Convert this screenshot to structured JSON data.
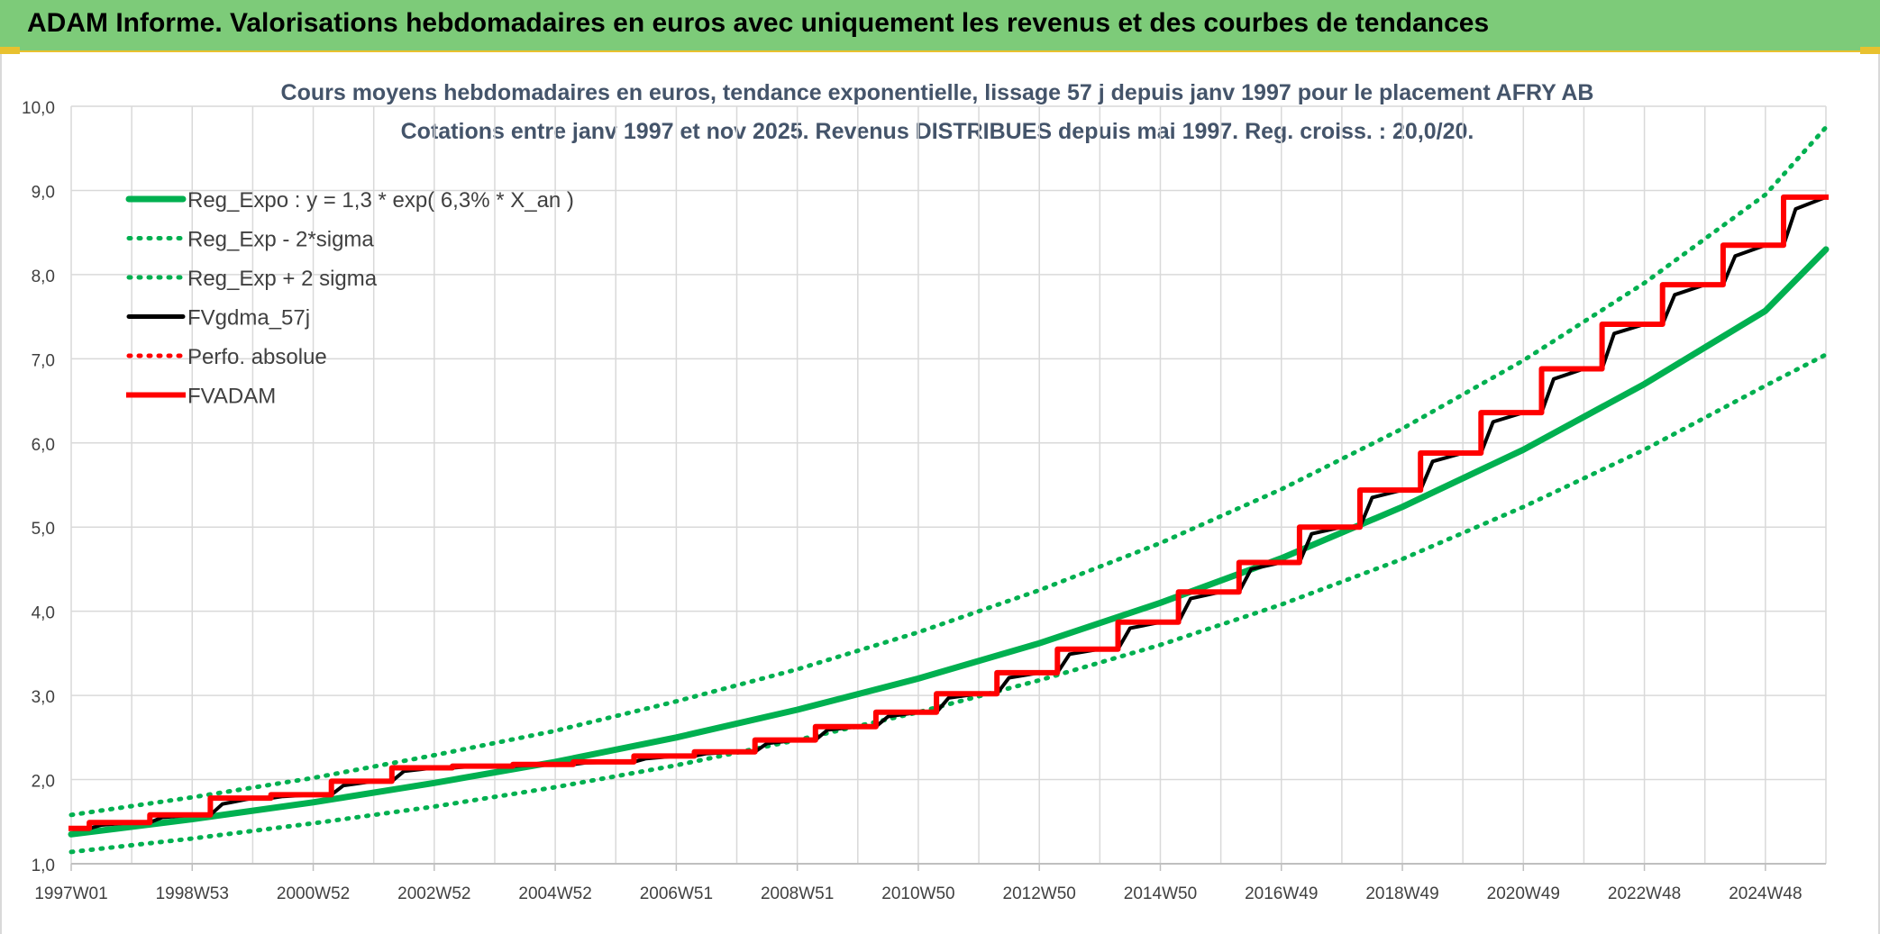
{
  "banner": {
    "title": "ADAM Informe. Valorisations hebdomadaires en euros avec uniquement les revenus et des courbes de tendances"
  },
  "chart_data": {
    "type": "line",
    "title": "Cours moyens hebdomadaires en euros, tendance exponentielle, lissage 57 j depuis janv 1997 pour le placement AFRY AB",
    "subtitle": "Cotations entre janv 1997 et nov 2025. Revenus DISTRIBUES depuis mai 1997. Reg. croiss. : 20,0/20.",
    "xlabel": "",
    "ylabel": "",
    "x_tick_labels": [
      "1997W01",
      "1998W53",
      "2000W52",
      "2002W52",
      "2004W52",
      "2006W51",
      "2008W51",
      "2010W50",
      "2012W50",
      "2014W50",
      "2016W49",
      "2018W49",
      "2020W49",
      "2022W48",
      "2024W48"
    ],
    "x_range": [
      1997.0,
      2026.0
    ],
    "ylim": [
      1.0,
      10.0
    ],
    "y_ticks": [
      "1,0",
      "2,0",
      "3,0",
      "4,0",
      "5,0",
      "6,0",
      "7,0",
      "8,0",
      "9,0",
      "10,0"
    ],
    "grid": true,
    "legend_position": "top-left",
    "series": [
      {
        "name": "Reg_Expo : y = 1,3 * exp( 6,3% *  X_an )",
        "color": "#00b050",
        "style": "solid",
        "x": [
          1997,
          1999,
          2001,
          2003,
          2005,
          2007,
          2009,
          2011,
          2013,
          2015,
          2017,
          2019,
          2021,
          2023,
          2025,
          2026
        ],
        "y": [
          1.35,
          1.53,
          1.73,
          1.96,
          2.21,
          2.5,
          2.83,
          3.2,
          3.62,
          4.1,
          4.63,
          5.24,
          5.92,
          6.7,
          7.57,
          8.3
        ]
      },
      {
        "name": "Reg_Exp - 2*sigma",
        "color": "#00b050",
        "style": "dotted",
        "x": [
          1997,
          1999,
          2001,
          2003,
          2005,
          2007,
          2009,
          2011,
          2013,
          2015,
          2017,
          2019,
          2021,
          2023,
          2025,
          2026
        ],
        "y": [
          1.14,
          1.3,
          1.48,
          1.68,
          1.91,
          2.17,
          2.47,
          2.8,
          3.18,
          3.6,
          4.08,
          4.62,
          5.24,
          5.92,
          6.68,
          7.05
        ]
      },
      {
        "name": "Reg_Exp + 2 sigma",
        "color": "#00b050",
        "style": "dotted",
        "x": [
          1997,
          1999,
          2001,
          2003,
          2005,
          2007,
          2009,
          2011,
          2013,
          2015,
          2017,
          2019,
          2021,
          2023,
          2025,
          2026
        ],
        "y": [
          1.58,
          1.79,
          2.02,
          2.29,
          2.58,
          2.93,
          3.31,
          3.75,
          4.25,
          4.81,
          5.45,
          6.17,
          6.98,
          7.9,
          8.95,
          9.75
        ]
      },
      {
        "name": "FVgdma_57j",
        "color": "#000000",
        "style": "solid",
        "x": [
          1997.0,
          1997.3,
          1997.5,
          1998.0,
          1998.3,
          1998.5,
          1999.0,
          1999.3,
          1999.5,
          2000.0,
          2000.3,
          2000.5,
          2001.0,
          2001.3,
          2001.5,
          2002.0,
          2002.3,
          2002.5,
          2003.0,
          2003.3,
          2003.5,
          2004.0,
          2004.3,
          2004.5,
          2005.0,
          2005.3,
          2005.5,
          2006.0,
          2006.3,
          2006.5,
          2007.0,
          2007.3,
          2007.5,
          2008.0,
          2008.3,
          2008.5,
          2009.0,
          2009.3,
          2009.5,
          2010.0,
          2010.3,
          2010.5,
          2011.0,
          2011.3,
          2011.5,
          2012.0,
          2012.3,
          2012.5,
          2013.0,
          2013.3,
          2013.5,
          2014.0,
          2014.3,
          2014.5,
          2015.0,
          2015.3,
          2015.5,
          2016.0,
          2016.3,
          2016.5,
          2017.0,
          2017.3,
          2017.5,
          2018.0,
          2018.3,
          2018.5,
          2019.0,
          2019.3,
          2019.5,
          2020.0,
          2020.3,
          2020.5,
          2021.0,
          2021.3,
          2021.5,
          2022.0,
          2022.3,
          2022.5,
          2023.0,
          2023.3,
          2023.5,
          2024.0,
          2024.3,
          2024.5,
          2025.0,
          2025.3,
          2025.5,
          2026.0
        ],
        "y": [
          1.42,
          1.42,
          1.46,
          1.49,
          1.49,
          1.55,
          1.58,
          1.58,
          1.71,
          1.78,
          1.78,
          1.8,
          1.82,
          1.82,
          1.93,
          1.98,
          1.98,
          2.1,
          2.14,
          2.14,
          2.15,
          2.16,
          2.16,
          2.17,
          2.18,
          2.18,
          2.2,
          2.21,
          2.21,
          2.25,
          2.28,
          2.28,
          2.31,
          2.33,
          2.33,
          2.43,
          2.47,
          2.47,
          2.59,
          2.63,
          2.63,
          2.75,
          2.8,
          2.8,
          2.97,
          3.02,
          3.02,
          3.21,
          3.27,
          3.27,
          3.49,
          3.55,
          3.55,
          3.8,
          3.87,
          3.87,
          4.15,
          4.23,
          4.23,
          4.5,
          4.58,
          4.58,
          4.92,
          5.0,
          5.0,
          5.35,
          5.44,
          5.44,
          5.78,
          5.88,
          5.88,
          6.25,
          6.36,
          6.36,
          6.76,
          6.88,
          6.88,
          7.3,
          7.41,
          7.41,
          7.76,
          7.88,
          7.88,
          8.22,
          8.35,
          8.35,
          8.78,
          8.92
        ]
      },
      {
        "name": "Perfo. absolue",
        "color": "#ff0000",
        "style": "dotted",
        "x": [],
        "y": []
      },
      {
        "name": "FVADAM",
        "color": "#ff0000",
        "style": "solid-step",
        "x": [
          1997.0,
          1997.3,
          1997.3,
          1998.3,
          1998.3,
          1999.3,
          1999.3,
          2000.3,
          2000.3,
          2001.3,
          2001.3,
          2002.3,
          2002.3,
          2003.3,
          2003.3,
          2004.3,
          2004.3,
          2005.3,
          2005.3,
          2006.3,
          2006.3,
          2007.3,
          2007.3,
          2008.3,
          2008.3,
          2009.3,
          2009.3,
          2010.3,
          2010.3,
          2011.3,
          2011.3,
          2012.3,
          2012.3,
          2013.3,
          2013.3,
          2014.3,
          2014.3,
          2015.3,
          2015.3,
          2016.3,
          2016.3,
          2017.3,
          2017.3,
          2018.3,
          2018.3,
          2019.3,
          2019.3,
          2020.3,
          2020.3,
          2021.3,
          2021.3,
          2022.3,
          2022.3,
          2023.3,
          2023.3,
          2024.3,
          2024.3,
          2025.3,
          2025.3,
          2026.0
        ],
        "y": [
          1.42,
          1.42,
          1.49,
          1.49,
          1.58,
          1.58,
          1.78,
          1.78,
          1.82,
          1.82,
          1.98,
          1.98,
          2.14,
          2.14,
          2.16,
          2.16,
          2.18,
          2.18,
          2.21,
          2.21,
          2.28,
          2.28,
          2.33,
          2.33,
          2.47,
          2.47,
          2.63,
          2.63,
          2.8,
          2.8,
          3.02,
          3.02,
          3.27,
          3.27,
          3.55,
          3.55,
          3.87,
          3.87,
          4.23,
          4.23,
          4.58,
          4.58,
          5.0,
          5.0,
          5.44,
          5.44,
          5.88,
          5.88,
          6.36,
          6.36,
          6.88,
          6.88,
          7.41,
          7.41,
          7.88,
          7.88,
          8.35,
          8.35,
          8.92,
          8.92
        ]
      }
    ]
  }
}
